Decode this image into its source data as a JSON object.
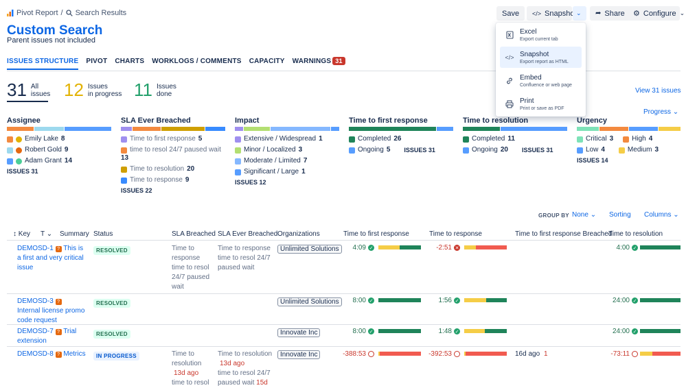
{
  "breadcrumb": {
    "pivot": "Pivot Report",
    "sep": "/",
    "search": "Search Results"
  },
  "page": {
    "title": "Custom Search",
    "subtitle": "Parent issues not included"
  },
  "toolbar": {
    "save": "Save",
    "snapshot": "Snapshot",
    "share": "Share",
    "configure": "Configure"
  },
  "menu": {
    "items": [
      {
        "title": "Excel",
        "desc": "Export current tab"
      },
      {
        "title": "Snapshot",
        "desc": "Export report as HTML"
      },
      {
        "title": "Embed",
        "desc": "Confluence or web page"
      },
      {
        "title": "Print",
        "desc": "Print or save as PDF"
      }
    ]
  },
  "tabs": [
    {
      "label": "ISSUES STRUCTURE"
    },
    {
      "label": "PIVOT"
    },
    {
      "label": "CHARTS"
    },
    {
      "label": "WORKLOGS / COMMENTS"
    },
    {
      "label": "CAPACITY"
    },
    {
      "label": "WARNINGS",
      "count": "31"
    }
  ],
  "stats": [
    {
      "value": "31",
      "l1": "All",
      "l2": "issues",
      "color": "#172b4d"
    },
    {
      "value": "12",
      "l1": "Issues",
      "l2": "in progress",
      "color": "#e2b203"
    },
    {
      "value": "11",
      "l1": "Issues",
      "l2": "done",
      "color": "#22a06b"
    }
  ],
  "view_all": "View 31 issues",
  "progress_label": "Progress",
  "dims": {
    "assignee": {
      "name": "Assignee",
      "rows": [
        [
          "Emily Lake",
          "8"
        ],
        [
          "Robert Gold",
          "9"
        ],
        [
          "Adam Grant",
          "14"
        ]
      ],
      "issues": "ISSUES 31"
    },
    "sla": {
      "name": "SLA Ever Breached",
      "rows": [
        [
          "Time to first response",
          "5"
        ],
        [
          "time to resol 24/7 paused wait",
          "13"
        ],
        [
          "Time to resolution",
          "20"
        ],
        [
          "Time to response",
          "9"
        ]
      ],
      "issues": "ISSUES 22"
    },
    "impact": {
      "name": "Impact",
      "rows": [
        [
          "Extensive / Widespread",
          "1"
        ],
        [
          "Minor / Localized",
          "3"
        ],
        [
          "Moderate / Limited",
          "7"
        ],
        [
          "Significant / Large",
          "1"
        ]
      ],
      "issues": "ISSUES 12"
    },
    "tfr": {
      "name": "Time to first response",
      "rows": [
        [
          "Completed",
          "26"
        ],
        [
          "Ongoing",
          "5"
        ]
      ],
      "issues": "ISSUES 31"
    },
    "ttr": {
      "name": "Time to resolution",
      "rows": [
        [
          "Completed",
          "11"
        ],
        [
          "Ongoing",
          "20"
        ]
      ],
      "issues": "ISSUES 31"
    },
    "urgency": {
      "name": "Urgency",
      "rows": [
        [
          "Critical",
          "3"
        ],
        [
          "High",
          "4"
        ],
        [
          "Low",
          "4"
        ],
        [
          "Medium",
          "3"
        ]
      ],
      "issues": "ISSUES 14"
    }
  },
  "groupby": {
    "label": "GROUP BY",
    "value": "None",
    "sorting": "Sorting",
    "columns": "Columns"
  },
  "table": {
    "headers": {
      "key": "Key",
      "t": "T",
      "summary": "Summary",
      "status": "Status",
      "sla": "SLA Breached",
      "slaever": "SLA Ever Breached",
      "org": "Organizations",
      "tfr": "Time to first response",
      "tr": "Time to response",
      "tfrb": "Time to first response Breached",
      "ttr": "Time to resolution"
    },
    "rows": [
      {
        "key": "DEMOSD-1",
        "summary": "This is a first and very critical issue",
        "status": "RESOLVED",
        "sla": "Time to response time to resol 24/7 paused wait",
        "slaever": "Time to response time to resol 24/7 paused wait",
        "org": "Unlimited Solutions",
        "tfr": "4:09",
        "tr": "-2:51",
        "tfrb": "",
        "ttr": "4:00"
      },
      {
        "key": "DEMOSD-3",
        "summary": "Internal license promo code request",
        "status": "RESOLVED",
        "sla": "",
        "slaever": "",
        "org": "Unlimited Solutions",
        "tfr": "8:00",
        "tr": "1:56",
        "tfrb": "",
        "ttr": "24:00"
      },
      {
        "key": "DEMOSD-7",
        "summary": "Trial extension",
        "status": "RESOLVED",
        "sla": "",
        "slaever": "",
        "org": "Innovate Inc",
        "tfr": "8:00",
        "tr": "1:48",
        "tfrb": "",
        "ttr": "24:00"
      },
      {
        "key": "DEMOSD-8",
        "summary": "Metrics",
        "status": "IN PROGRESS",
        "sla": "Time to resolution",
        "sla_ago": "13d ago",
        "sla2": "time to resol",
        "slaever": "Time to resolution",
        "slaever_ago": "13d ago",
        "slaever2": "time to resol 24/7 paused wait",
        "slaever2_ago": "15d",
        "org": "Innovate Inc",
        "tfr": "-388:53",
        "tr": "-392:53",
        "tfrb": "16d ago",
        "tfrb_count": "1",
        "ttr": "-73:11"
      }
    ]
  }
}
